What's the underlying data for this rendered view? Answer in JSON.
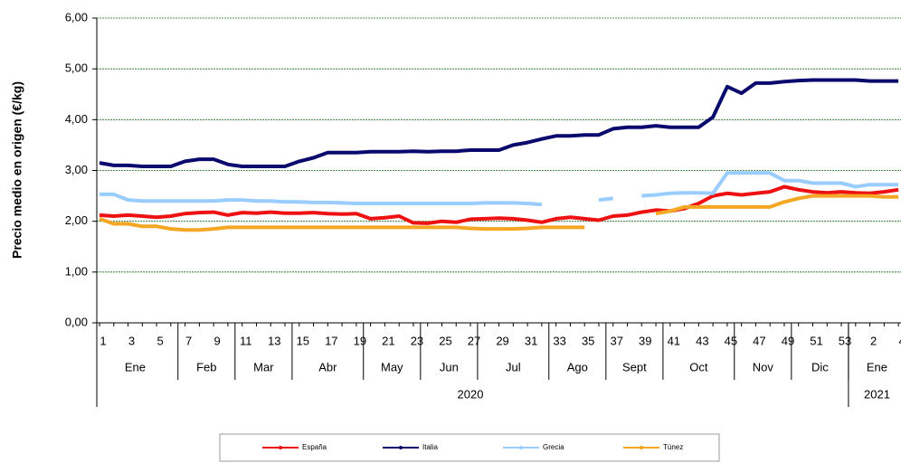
{
  "chart_data": {
    "type": "line",
    "y_label": "Precio medio en origen (€/kg)",
    "categories": [
      "1",
      null,
      "3",
      null,
      "5",
      null,
      "7",
      null,
      "9",
      null,
      "11",
      null,
      "13",
      null,
      "15",
      null,
      "17",
      null,
      "19",
      null,
      "21",
      null,
      "23",
      null,
      "25",
      null,
      "27",
      null,
      "29",
      null,
      "31",
      null,
      "33",
      null,
      "35",
      null,
      "37",
      null,
      "39",
      null,
      "41",
      null,
      "43",
      null,
      "45",
      null,
      "47",
      null,
      "49",
      null,
      "51",
      null,
      "53",
      null,
      "2",
      null,
      "4"
    ],
    "month_groups": [
      {
        "label": "Ene",
        "count": 6
      },
      {
        "label": "Feb",
        "count": 4
      },
      {
        "label": "Mar",
        "count": 4
      },
      {
        "label": "Abr",
        "count": 5
      },
      {
        "label": "May",
        "count": 4
      },
      {
        "label": "Jun",
        "count": 4
      },
      {
        "label": "Jul",
        "count": 5
      },
      {
        "label": "Ago",
        "count": 4
      },
      {
        "label": "Sept",
        "count": 4
      },
      {
        "label": "Oct",
        "count": 5
      },
      {
        "label": "Nov",
        "count": 4
      },
      {
        "label": "Dic",
        "count": 4
      },
      {
        "label": "Ene",
        "count": 4
      }
    ],
    "year_groups": [
      {
        "label": "2020",
        "count": 53
      },
      {
        "label": "2021",
        "count": 4
      }
    ],
    "ylim": [
      0,
      6
    ],
    "yticks": [
      {
        "value": 0,
        "label": "0,00"
      },
      {
        "value": 1,
        "label": "1,00"
      },
      {
        "value": 2,
        "label": "2,00"
      },
      {
        "value": 3,
        "label": "3,00"
      },
      {
        "value": 4,
        "label": "4,00"
      },
      {
        "value": 5,
        "label": "5,00"
      },
      {
        "value": 6,
        "label": "6,00"
      }
    ],
    "grid": true,
    "legend": "bottom",
    "series": [
      {
        "name": "España",
        "color": "#ee1111",
        "values": [
          2.12,
          2.1,
          2.12,
          2.1,
          2.08,
          2.1,
          2.15,
          2.17,
          2.18,
          2.12,
          2.17,
          2.16,
          2.18,
          2.16,
          2.16,
          2.17,
          2.15,
          2.14,
          2.15,
          2.05,
          2.07,
          2.1,
          1.97,
          1.96,
          2.0,
          1.98,
          2.04,
          2.05,
          2.06,
          2.05,
          2.02,
          1.98,
          2.05,
          2.08,
          2.05,
          2.02,
          2.1,
          2.12,
          2.18,
          2.22,
          2.2,
          2.25,
          2.35,
          2.5,
          2.55,
          2.52,
          2.55,
          2.58,
          2.68,
          2.62,
          2.58,
          2.56,
          2.58,
          2.56,
          2.55,
          2.58,
          2.62
        ]
      },
      {
        "name": "Italia",
        "color": "#0a0a6e",
        "values": [
          3.15,
          3.1,
          3.1,
          3.08,
          3.08,
          3.08,
          3.18,
          3.22,
          3.22,
          3.12,
          3.08,
          3.08,
          3.08,
          3.08,
          3.18,
          3.25,
          3.35,
          3.35,
          3.35,
          3.37,
          3.37,
          3.37,
          3.38,
          3.37,
          3.38,
          3.38,
          3.4,
          3.4,
          3.4,
          3.5,
          3.55,
          3.62,
          3.68,
          3.68,
          3.7,
          3.7,
          3.82,
          3.85,
          3.85,
          3.88,
          3.85,
          3.85,
          3.85,
          4.05,
          4.65,
          4.52,
          4.72,
          4.72,
          4.75,
          4.77,
          4.78,
          4.78,
          4.78,
          4.78,
          4.76,
          4.76,
          4.76
        ]
      },
      {
        "name": "Grecia",
        "color": "#99ccff",
        "values": [
          2.53,
          2.53,
          2.42,
          2.4,
          2.4,
          2.4,
          2.4,
          2.4,
          2.4,
          2.42,
          2.42,
          2.4,
          2.4,
          2.38,
          2.38,
          2.37,
          2.37,
          2.36,
          2.35,
          2.35,
          2.35,
          2.35,
          2.35,
          2.35,
          2.35,
          2.35,
          2.35,
          2.36,
          2.36,
          2.36,
          2.35,
          2.33,
          null,
          null,
          null,
          2.42,
          2.45,
          null,
          2.5,
          2.52,
          2.55,
          2.56,
          2.56,
          2.55,
          2.95,
          2.95,
          2.95,
          2.95,
          2.8,
          2.8,
          2.75,
          2.75,
          2.75,
          2.68,
          2.72,
          2.72,
          2.72
        ]
      },
      {
        "name": "Túnez",
        "color": "#f5a623",
        "values": [
          2.05,
          1.95,
          1.95,
          1.9,
          1.9,
          1.85,
          1.83,
          1.83,
          1.85,
          1.88,
          1.88,
          1.88,
          1.88,
          1.88,
          1.88,
          1.88,
          1.88,
          1.88,
          1.88,
          1.88,
          1.88,
          1.88,
          1.88,
          1.88,
          1.88,
          1.88,
          1.86,
          1.85,
          1.85,
          1.85,
          1.86,
          1.88,
          1.88,
          1.88,
          1.88,
          null,
          null,
          null,
          null,
          2.15,
          2.2,
          2.28,
          2.28,
          2.28,
          2.28,
          2.28,
          2.28,
          2.28,
          2.38,
          2.45,
          2.5,
          2.5,
          2.5,
          2.5,
          2.5,
          2.48,
          2.48
        ]
      }
    ]
  }
}
